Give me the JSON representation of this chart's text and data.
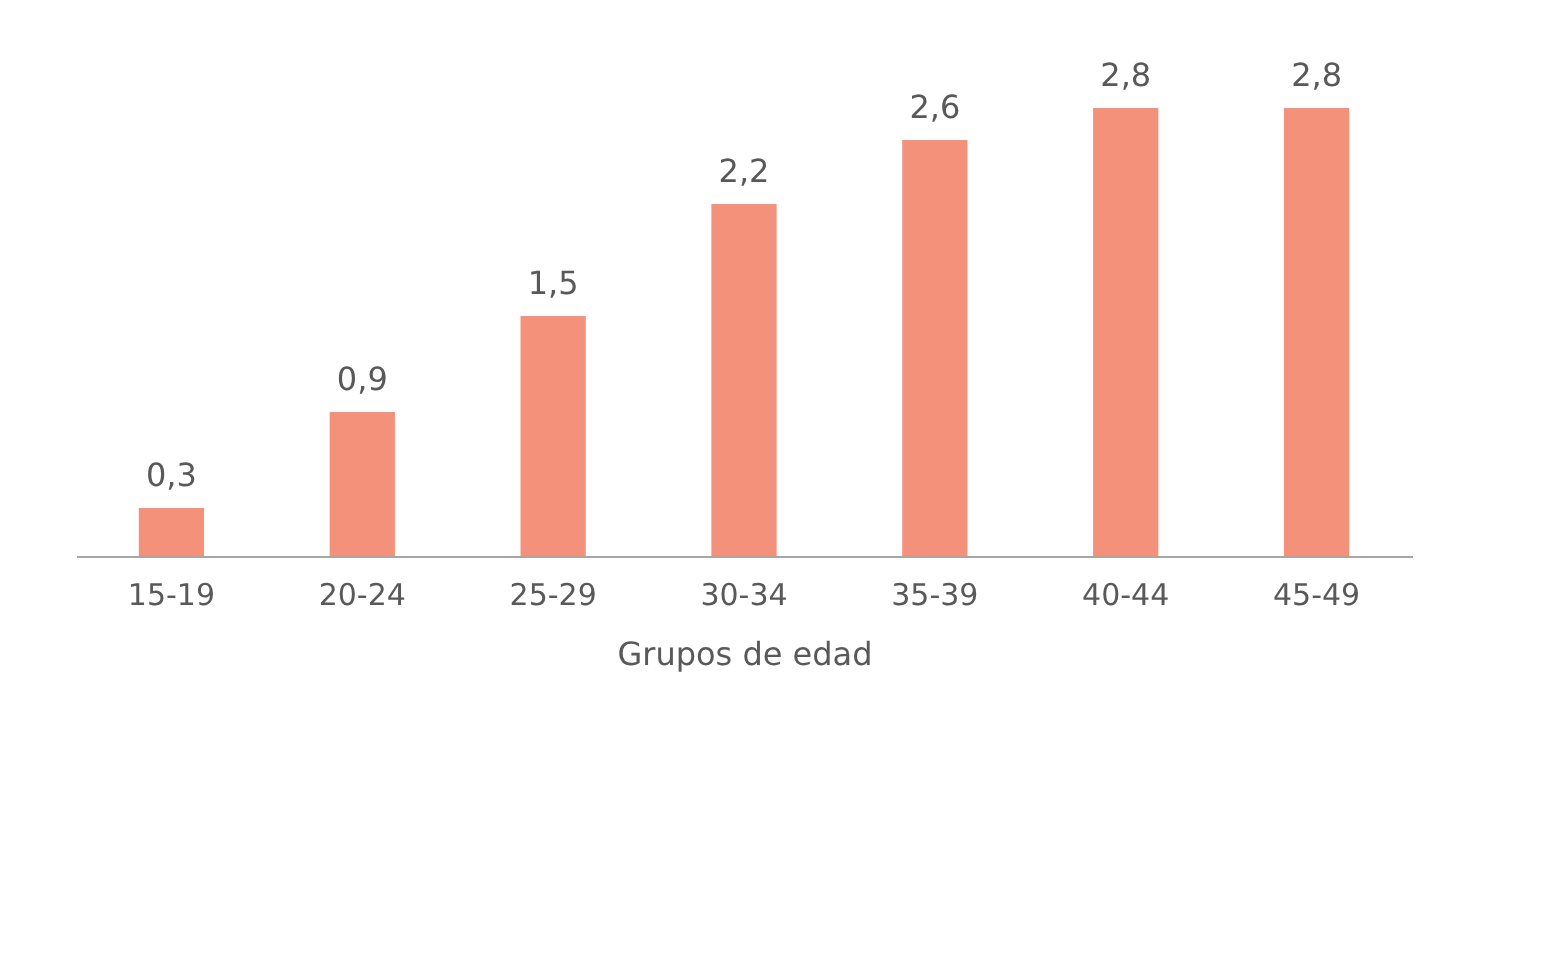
{
  "chart_data": {
    "type": "bar",
    "xlabel": "Grupos de edad",
    "categories": [
      "15-19",
      "20-24",
      "25-29",
      "30-34",
      "35-39",
      "40-44",
      "45-49"
    ],
    "values": [
      0.3,
      0.9,
      1.5,
      2.2,
      2.6,
      2.8,
      2.8
    ],
    "value_labels": [
      "0,3",
      "0,9",
      "1,5",
      "2,2",
      "2,6",
      "2,8",
      "2,8"
    ],
    "color": "#f4917a",
    "tick_labels": "x",
    "grid": false
  }
}
